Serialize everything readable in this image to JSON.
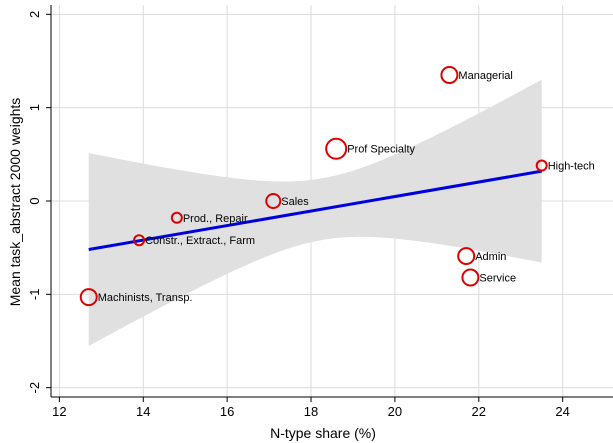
{
  "chart_data": {
    "type": "scatter",
    "xlabel": "N-type share (%)",
    "ylabel": "Mean task_abstract 2000 weights",
    "xlim": [
      11.8,
      25.2
    ],
    "ylim": [
      -2.1,
      2.1
    ],
    "xticks": [
      12,
      14,
      16,
      18,
      20,
      22,
      24
    ],
    "yticks": [
      -2,
      -1,
      0,
      1,
      2
    ],
    "grid": true,
    "points": [
      {
        "label": "Managerial",
        "x": 21.3,
        "y": 1.35,
        "size": 8
      },
      {
        "label": "Prof Specialty",
        "x": 18.6,
        "y": 0.56,
        "size": 10
      },
      {
        "label": "High-tech",
        "x": 23.5,
        "y": 0.38,
        "size": 5
      },
      {
        "label": "Sales",
        "x": 17.1,
        "y": 0.0,
        "size": 7
      },
      {
        "label": "Prod., Repair",
        "x": 14.8,
        "y": -0.18,
        "size": 5
      },
      {
        "label": "Constr., Extract., Farm",
        "x": 13.9,
        "y": -0.42,
        "size": 5
      },
      {
        "label": "Admin",
        "x": 21.7,
        "y": -0.59,
        "size": 8
      },
      {
        "label": "Service",
        "x": 21.8,
        "y": -0.82,
        "size": 8
      },
      {
        "label": "Machinists, Transp.",
        "x": 12.7,
        "y": -1.03,
        "size": 8
      }
    ],
    "fit_line": {
      "x": [
        12.7,
        23.5
      ],
      "y": [
        -0.52,
        0.32
      ],
      "color": "#0000dd"
    },
    "confidence_band": {
      "x": [
        12.7,
        23.5
      ],
      "upper": [
        0.52,
        1.3
      ],
      "lower": [
        -1.57,
        -0.67
      ],
      "color": "#e0e0e0"
    },
    "marker_color": "#e00000"
  }
}
